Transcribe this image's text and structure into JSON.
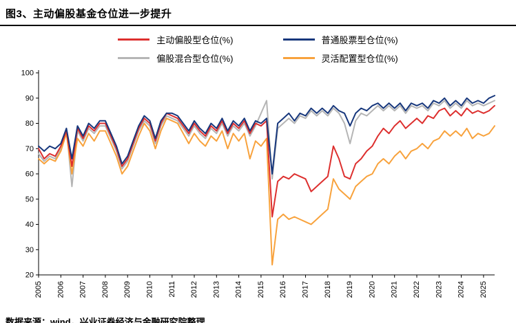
{
  "title": "图3、主动偏股基金仓位进一步提升",
  "footer": "数据来源：wind，兴业证券经济与金融研究院整理",
  "colors": {
    "active_equity": "#dd2f2e",
    "common_stock": "#17377c",
    "equity_hybrid": "#b5b5b5",
    "flexible_alloc": "#f8a23c",
    "axis": "#000000",
    "title_rule": "#000000"
  },
  "legend": [
    {
      "label": "主动偏股型仓位(%)",
      "color": "#dd2f2e"
    },
    {
      "label": "普通股票型仓位(%)",
      "color": "#17377c"
    },
    {
      "label": "偏股混合型仓位(%)",
      "color": "#b5b5b5"
    },
    {
      "label": "灵活配置型仓位(%)",
      "color": "#f8a23c"
    }
  ],
  "chart_data": {
    "type": "line",
    "title": "图3、主动偏股基金仓位进一步提升",
    "xlabel": "",
    "ylabel": "",
    "ylim": [
      20,
      100
    ],
    "yticks": [
      20,
      30,
      40,
      50,
      60,
      70,
      80,
      90,
      100
    ],
    "x_frequency": "quarterly",
    "x_range": [
      "2005Q1",
      "2025Q3"
    ],
    "points_per_year": 4,
    "xticklabels": [
      "2005",
      "2006",
      "2007",
      "2008",
      "2009",
      "2010",
      "2011",
      "2012",
      "2013",
      "2014",
      "2015",
      "2016",
      "2017",
      "2018",
      "2019",
      "2020",
      "2021",
      "2022",
      "2023",
      "2024",
      "2025"
    ],
    "grid": false,
    "legend_position": "top",
    "draw_order": [
      2,
      3,
      0,
      1
    ],
    "series": [
      {
        "name": "主动偏股型仓位(%)",
        "color": "#dd2f2e",
        "values": [
          70,
          66,
          68,
          67,
          71,
          77,
          63,
          78,
          74,
          79,
          77,
          80,
          80,
          75,
          70,
          63,
          66,
          72,
          78,
          82,
          80,
          73,
          80,
          84,
          83,
          82,
          79,
          76,
          80,
          77,
          75,
          79,
          77,
          81,
          76,
          80,
          78,
          81,
          76,
          80,
          79,
          81,
          43,
          57,
          59,
          58,
          60,
          59,
          58,
          53,
          55,
          57,
          59,
          71,
          66,
          59,
          58,
          64,
          66,
          69,
          71,
          75,
          78,
          76,
          79,
          81,
          78,
          80,
          82,
          80,
          83,
          82,
          85,
          86,
          83,
          85,
          83,
          86,
          84,
          85,
          84,
          85,
          87
        ]
      },
      {
        "name": "普通股票型仓位(%)",
        "color": "#17377c",
        "values": [
          71,
          69,
          71,
          70,
          72,
          78,
          66,
          79,
          75,
          80,
          78,
          81,
          81,
          76,
          71,
          64,
          67,
          73,
          79,
          83,
          81,
          74,
          81,
          84,
          84,
          83,
          80,
          77,
          81,
          78,
          76,
          80,
          78,
          82,
          77,
          81,
          79,
          82,
          77,
          81,
          80,
          82,
          60,
          80,
          82,
          84,
          81,
          84,
          83,
          86,
          84,
          86,
          84,
          87,
          85,
          84,
          79,
          84,
          86,
          85,
          87,
          88,
          86,
          88,
          86,
          88,
          85,
          88,
          87,
          88,
          86,
          89,
          88,
          90,
          87,
          89,
          87,
          90,
          88,
          89,
          88,
          90,
          91
        ]
      },
      {
        "name": "偏股混合型仓位(%)",
        "color": "#b5b5b5",
        "values": [
          68,
          65,
          67,
          66,
          70,
          78,
          55,
          77,
          73,
          78,
          76,
          79,
          79,
          74,
          69,
          62,
          65,
          71,
          77,
          81,
          79,
          72,
          79,
          83,
          82,
          81,
          78,
          75,
          79,
          76,
          74,
          78,
          76,
          80,
          75,
          79,
          77,
          80,
          75,
          79,
          84,
          89,
          58,
          78,
          80,
          82,
          80,
          83,
          82,
          85,
          83,
          85,
          83,
          86,
          84,
          80,
          72,
          81,
          84,
          83,
          85,
          87,
          85,
          87,
          85,
          87,
          84,
          87,
          86,
          87,
          85,
          88,
          87,
          89,
          86,
          88,
          86,
          89,
          87,
          88,
          87,
          88,
          89
        ]
      },
      {
        "name": "灵活配置型仓位(%)",
        "color": "#f8a23c",
        "values": [
          66,
          64,
          66,
          65,
          69,
          76,
          60,
          74,
          71,
          76,
          73,
          77,
          77,
          72,
          67,
          60,
          63,
          69,
          75,
          80,
          77,
          70,
          77,
          82,
          81,
          80,
          76,
          72,
          76,
          73,
          71,
          75,
          73,
          77,
          70,
          76,
          73,
          76,
          66,
          73,
          71,
          74,
          24,
          42,
          44,
          42,
          43,
          42,
          41,
          40,
          42,
          44,
          46,
          58,
          54,
          52,
          50,
          55,
          57,
          59,
          60,
          64,
          66,
          64,
          67,
          69,
          66,
          69,
          70,
          72,
          70,
          73,
          74,
          77,
          75,
          77,
          75,
          78,
          74,
          76,
          75,
          76,
          79
        ]
      }
    ]
  }
}
